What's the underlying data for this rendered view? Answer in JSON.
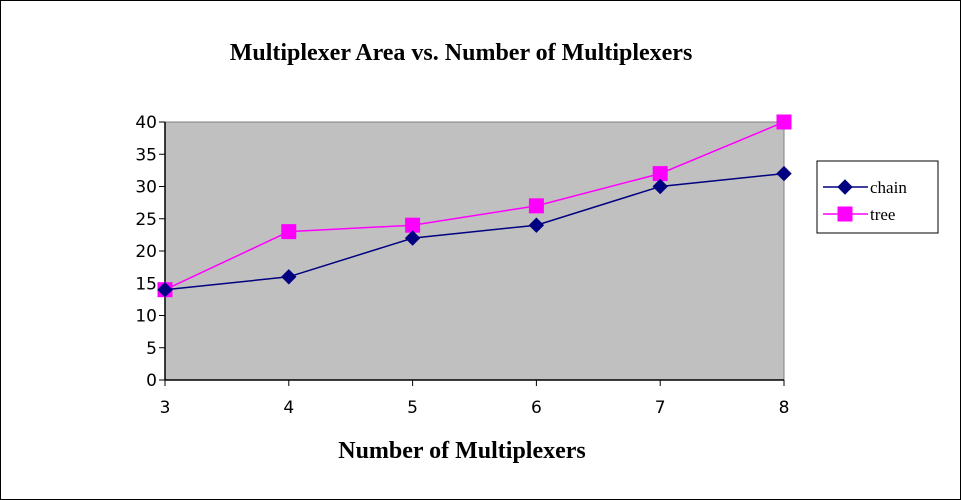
{
  "chart_data": {
    "type": "line",
    "title": "Multiplexer Area vs. Number of Multiplexers",
    "xlabel": "Number of Multiplexers",
    "ylabel": "",
    "x": [
      3,
      4,
      5,
      6,
      7,
      8
    ],
    "ylim": [
      0,
      40
    ],
    "ytick_step": 5,
    "grid": false,
    "plot_background": "#c0c0c0",
    "legend_position": "right",
    "series": [
      {
        "name": "chain",
        "color": "#000080",
        "marker": "diamond",
        "values": [
          14,
          16,
          22,
          24,
          30,
          32
        ]
      },
      {
        "name": "tree",
        "color": "#ff00ff",
        "marker": "square",
        "values": [
          14,
          23,
          24,
          27,
          32,
          40
        ]
      }
    ]
  }
}
